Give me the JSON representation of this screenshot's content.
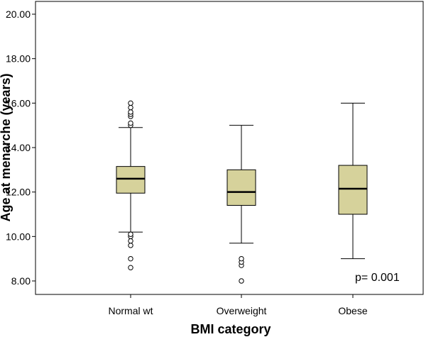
{
  "chart_data": {
    "type": "boxplot",
    "title": "",
    "xlabel": "BMI category",
    "ylabel": "Age at menarche (years)",
    "ylim": [
      7.6,
      20.4
    ],
    "yticks": [
      "8.00",
      "10.00",
      "12.00",
      "14.00",
      "16.00",
      "18.00",
      "20.00"
    ],
    "grid": false,
    "categories": [
      "Normal wt",
      "Overweight",
      "Obese"
    ],
    "box_color": "#d6d29b",
    "boxes": [
      {
        "category": "Normal wt",
        "whisker_low": 10.2,
        "q1": 11.95,
        "median": 12.6,
        "q3": 13.15,
        "whisker_high": 14.9,
        "outliers": [
          15.0,
          15.1,
          15.4,
          15.5,
          15.6,
          15.8,
          16.0,
          8.6,
          9.0,
          9.6,
          9.8,
          10.0,
          10.1
        ]
      },
      {
        "category": "Overweight",
        "whisker_low": 9.7,
        "q1": 11.4,
        "median": 12.0,
        "q3": 13.0,
        "whisker_high": 15.0,
        "outliers": [
          8.0,
          8.7,
          8.85,
          9.0
        ]
      },
      {
        "category": "Obese",
        "whisker_low": 9.0,
        "q1": 11.0,
        "median": 12.15,
        "q3": 13.2,
        "whisker_high": 16.0,
        "outliers": []
      }
    ],
    "annotation": "p= 0.001"
  }
}
